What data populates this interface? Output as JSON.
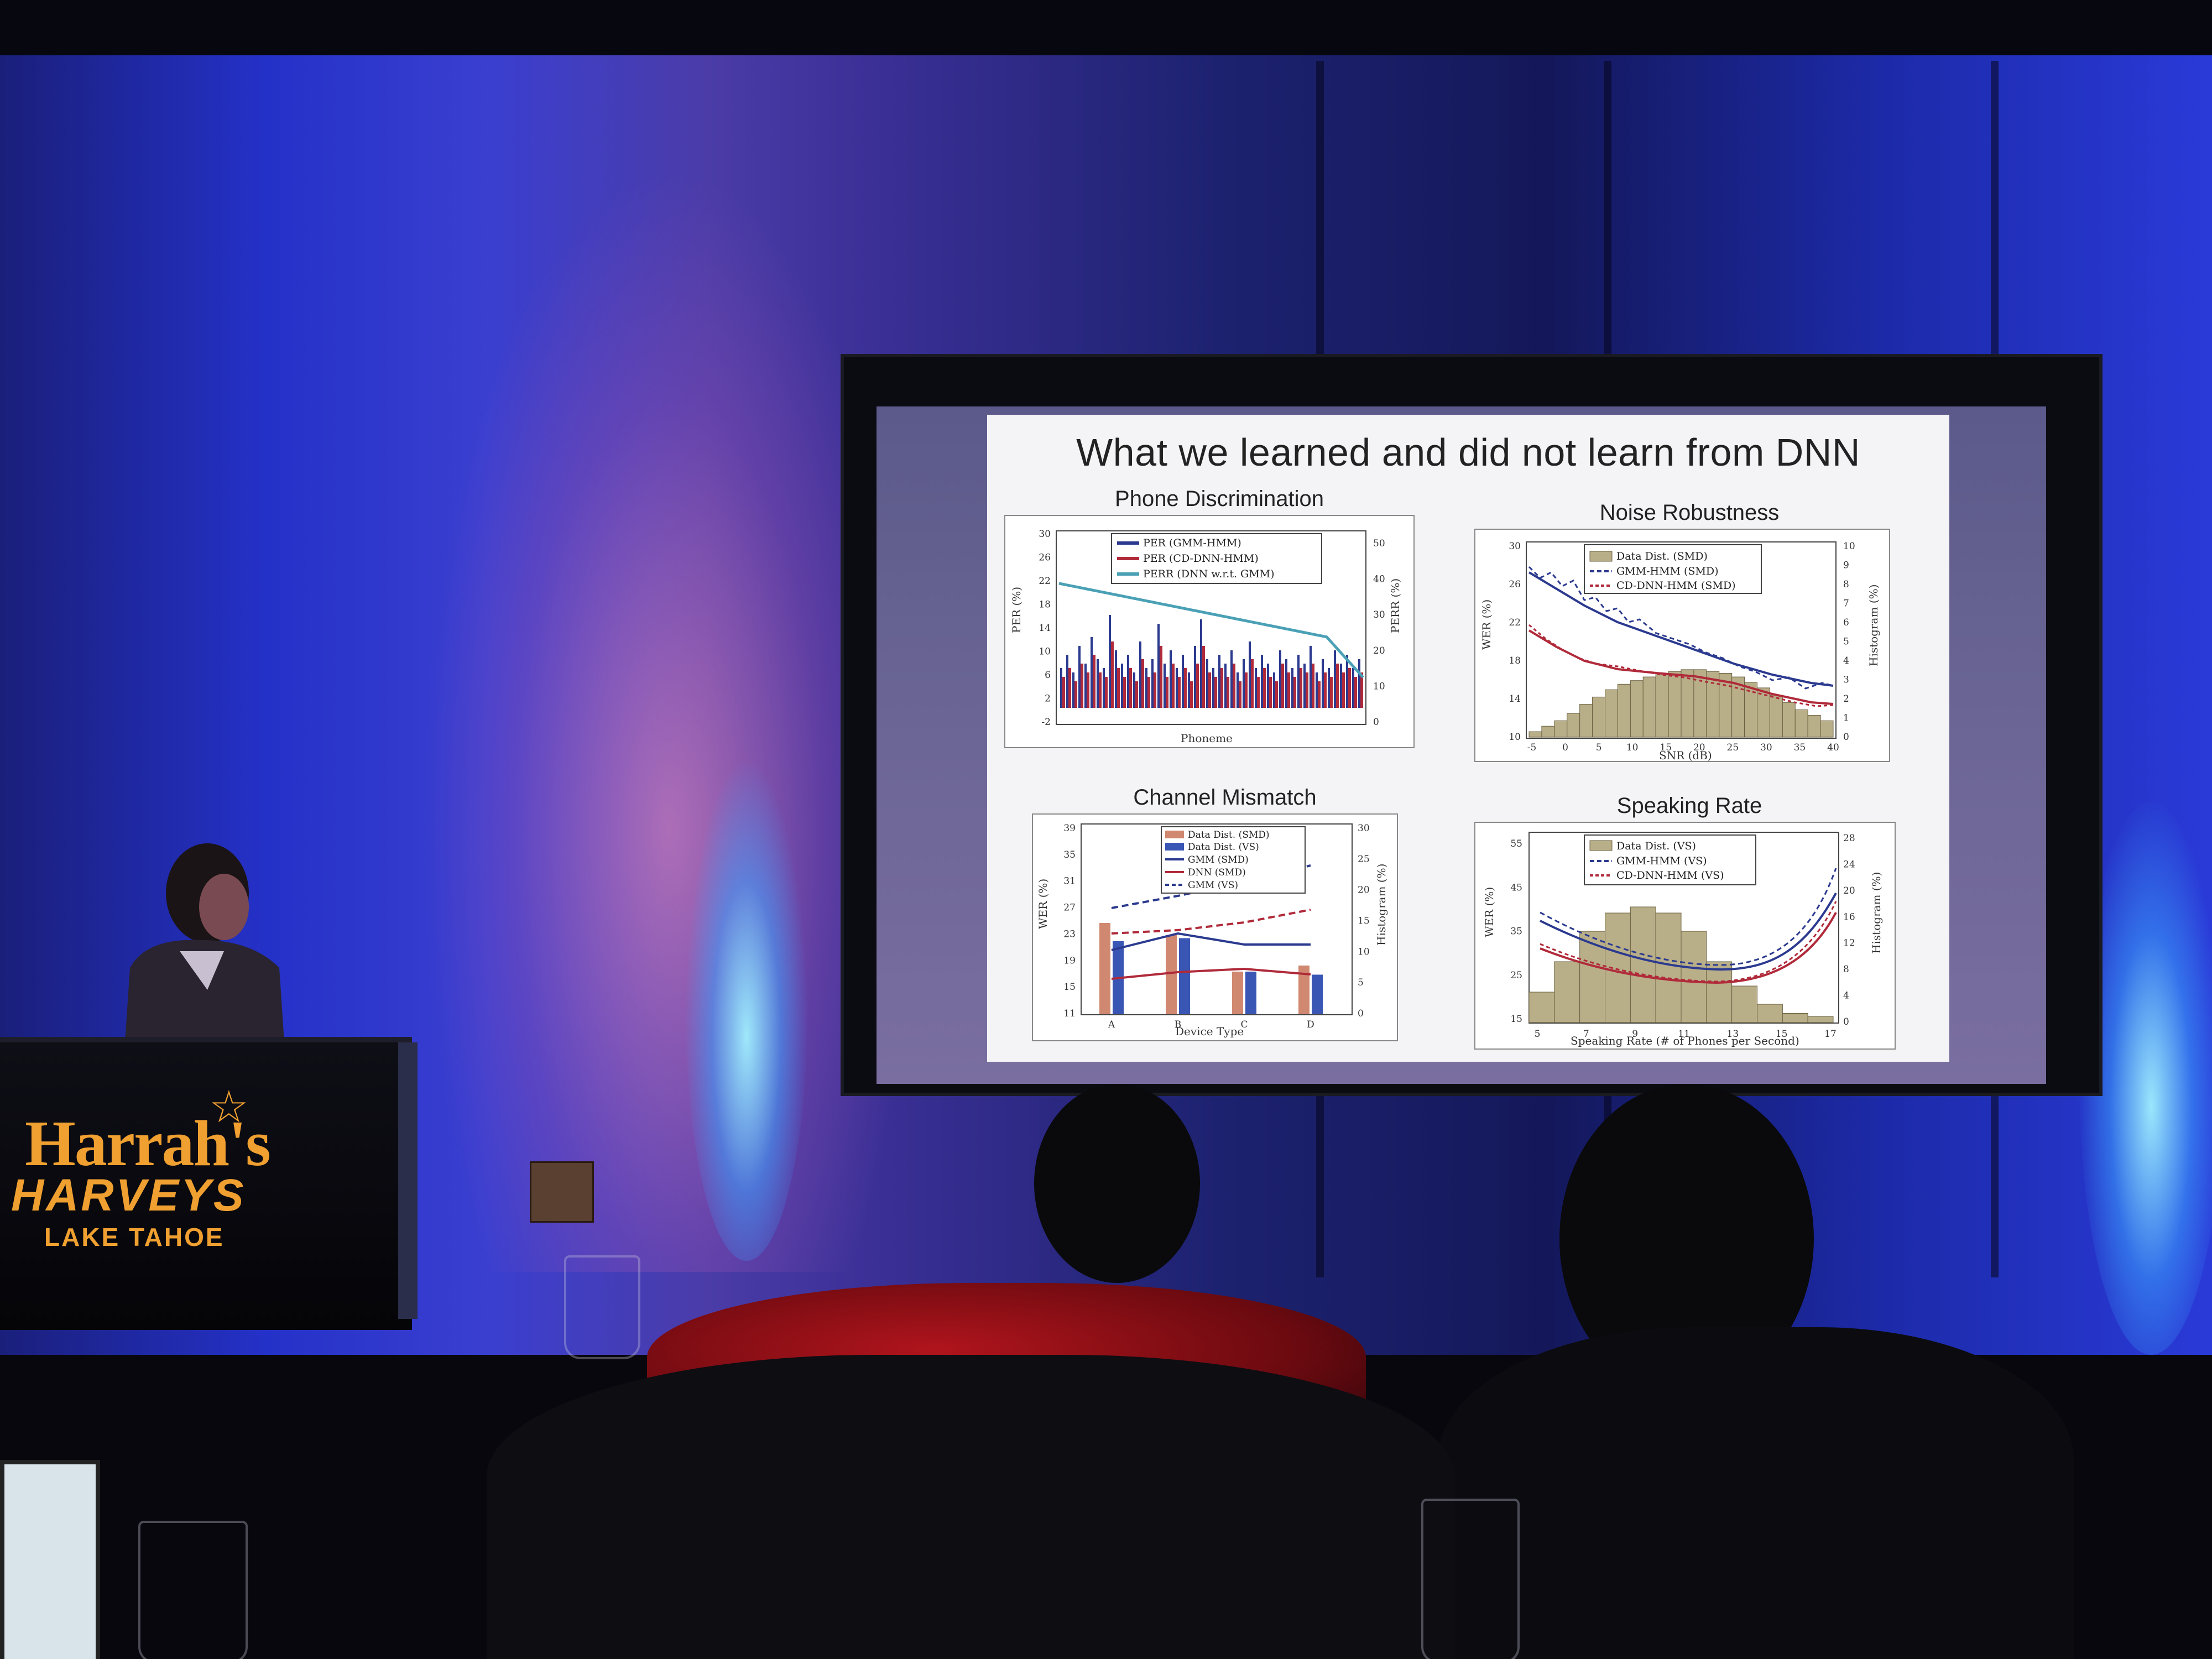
{
  "slide": {
    "title": "What we learned and did not learn from DNN",
    "panels": {
      "phone": {
        "title": "Phone Discrimination",
        "y_ticks": [
          "30",
          "26",
          "22",
          "18",
          "14",
          "10",
          "6",
          "2",
          "-2"
        ],
        "y_label": "PER (%)",
        "y2_ticks": [
          "50",
          "40",
          "30",
          "20",
          "10",
          "0"
        ],
        "y2_label": "PERR (%)",
        "x_label": "Phoneme",
        "legend": [
          "PER (GMM-HMM)",
          "PER (CD-DNN-HMM)",
          "PERR (DNN w.r.t. GMM)"
        ]
      },
      "noise": {
        "title": "Noise Robustness",
        "y_ticks": [
          "30",
          "26",
          "22",
          "18",
          "14",
          "10"
        ],
        "y_label": "WER (%)",
        "y2_ticks": [
          "10",
          "9",
          "8",
          "7",
          "6",
          "5",
          "4",
          "3",
          "2",
          "1",
          "0"
        ],
        "y2_label": "Histogram (%)",
        "x_ticks": [
          "-5",
          "0",
          "5",
          "10",
          "15",
          "20",
          "25",
          "30",
          "35",
          "40"
        ],
        "x_label": "SNR (dB)",
        "legend": [
          "Data Dist. (SMD)",
          "GMM-HMM (SMD)",
          "CD-DNN-HMM (SMD)"
        ]
      },
      "channel": {
        "title": "Channel Mismatch",
        "y_ticks": [
          "39",
          "35",
          "31",
          "27",
          "23",
          "19",
          "15",
          "11"
        ],
        "y_label": "WER (%)",
        "y2_ticks": [
          "30",
          "25",
          "20",
          "15",
          "10",
          "5",
          "0"
        ],
        "y2_label": "Histogram (%)",
        "x_ticks": [
          "A",
          "B",
          "C",
          "D"
        ],
        "x_label": "Device Type",
        "legend": [
          "Data Dist. (SMD)",
          "Data Dist. (VS)",
          "GMM (SMD)",
          "DNN (SMD)",
          "GMM (VS)"
        ]
      },
      "rate": {
        "title": "Speaking Rate",
        "y_ticks": [
          "55",
          "45",
          "35",
          "25",
          "15"
        ],
        "y_label": "WER (%)",
        "y2_ticks": [
          "28",
          "24",
          "20",
          "16",
          "12",
          "8",
          "4",
          "0"
        ],
        "y2_label": "Histogram (%)",
        "x_ticks": [
          "5",
          "7",
          "9",
          "11",
          "13",
          "15",
          "17"
        ],
        "x_label": "Speaking Rate (# of Phones per Second)",
        "legend": [
          "Data Dist. (VS)",
          "GMM-HMM (VS)",
          "CD-DNN-HMM (VS)"
        ]
      }
    }
  },
  "podium": {
    "brand": "Harrah's",
    "brand2": "HARVEYS",
    "location": "LAKE TAHOE"
  },
  "colors": {
    "wall_blue": "#2431c8",
    "uplight": "#8fe6ff",
    "slide_bg": "#f4f3f6",
    "gmm_blue": "#2b3a8f",
    "dnn_red": "#b02a3a",
    "perr_teal": "#4aa0b5",
    "hist_tan": "#b8ae88",
    "logo_gold": "#f0a030"
  }
}
